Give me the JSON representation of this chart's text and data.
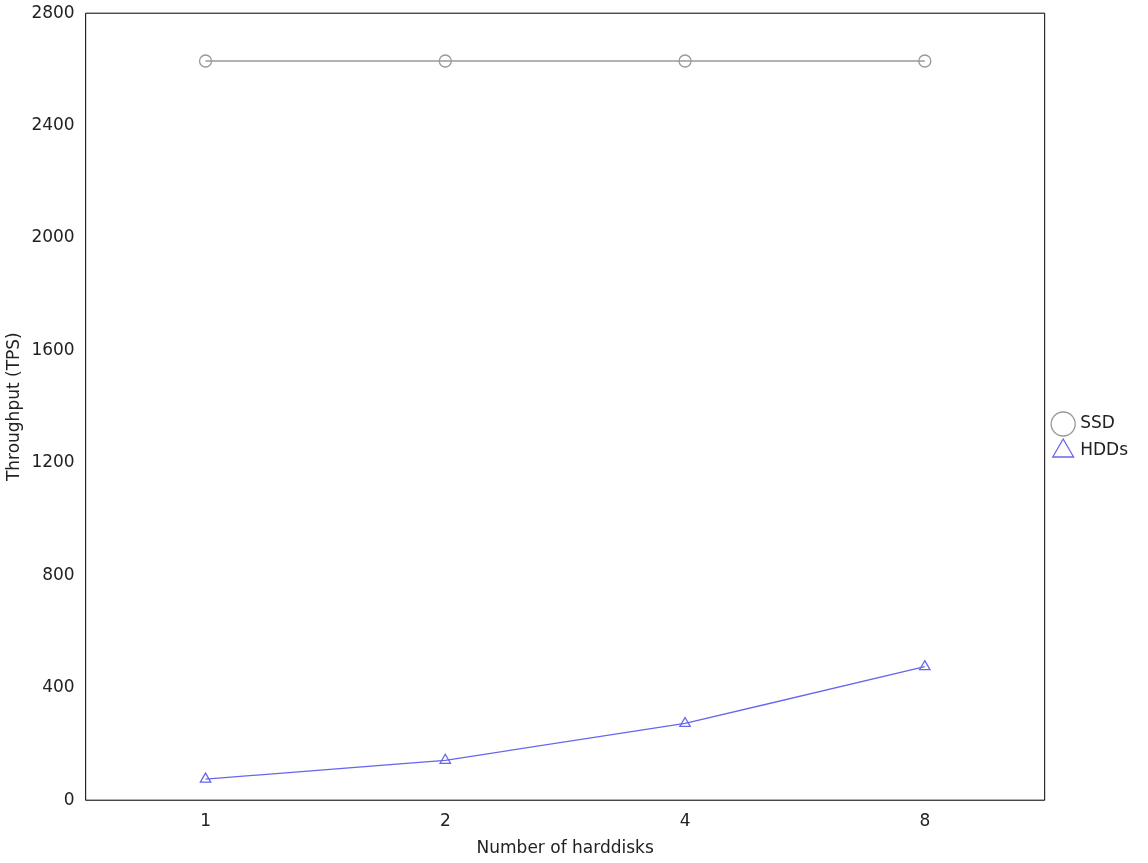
{
  "chart_data": {
    "type": "line",
    "xlabel": "Number of harddisks",
    "ylabel": "Throughput (TPS)",
    "categories": [
      "1",
      "2",
      "4",
      "8"
    ],
    "series": [
      {
        "name": "SSD",
        "color": "#999999",
        "marker": "circle",
        "values": [
          2630,
          2630,
          2630,
          2630
        ]
      },
      {
        "name": "HDDs",
        "color": "#6666ee",
        "marker": "triangle",
        "values": [
          75,
          142,
          273,
          475
        ]
      }
    ],
    "ylim": [
      0,
      2800
    ],
    "yticks": [
      0,
      400,
      800,
      1200,
      1600,
      2000,
      2400,
      2800
    ],
    "grid": false,
    "legend": "right",
    "line_style": "solid"
  }
}
